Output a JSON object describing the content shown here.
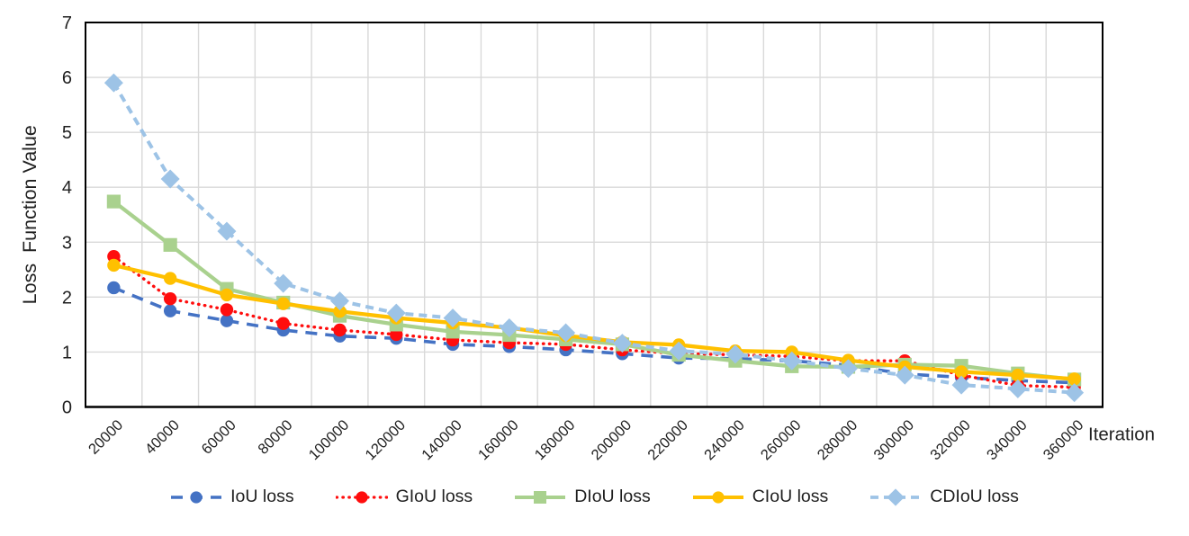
{
  "chart_data": {
    "type": "line",
    "title": "",
    "xlabel": "Iteration",
    "ylabel": "Loss  Function Value",
    "ylim": [
      0,
      7
    ],
    "yticks": [
      0,
      1,
      2,
      3,
      4,
      5,
      6,
      7
    ],
    "grid": true,
    "legend_position": "bottom",
    "categories": [
      20000,
      40000,
      60000,
      80000,
      100000,
      120000,
      140000,
      160000,
      180000,
      200000,
      220000,
      240000,
      260000,
      280000,
      300000,
      320000,
      340000,
      360000
    ],
    "series": [
      {
        "name": "IoU loss",
        "color": "#4472C4",
        "line_style": "long-dash",
        "marker": "circle",
        "values": [
          2.17,
          1.75,
          1.57,
          1.4,
          1.29,
          1.25,
          1.14,
          1.1,
          1.04,
          0.97,
          0.89,
          0.88,
          0.84,
          0.76,
          0.6,
          0.54,
          0.48,
          0.44
        ]
      },
      {
        "name": "GIoU loss",
        "color": "#FF0D0D",
        "line_style": "dotted",
        "marker": "circle",
        "values": [
          2.74,
          1.97,
          1.77,
          1.52,
          1.4,
          1.32,
          1.22,
          1.17,
          1.14,
          1.04,
          0.97,
          0.95,
          0.92,
          0.84,
          0.84,
          0.58,
          0.39,
          0.36
        ]
      },
      {
        "name": "DIoU loss",
        "color": "#A9D18E",
        "line_style": "solid",
        "marker": "square",
        "values": [
          3.74,
          2.95,
          2.15,
          1.9,
          1.66,
          1.5,
          1.37,
          1.31,
          1.23,
          1.14,
          0.95,
          0.84,
          0.74,
          0.73,
          0.77,
          0.75,
          0.61,
          0.5
        ]
      },
      {
        "name": "CIoU loss",
        "color": "#FFC000",
        "line_style": "solid",
        "marker": "circle",
        "values": [
          2.58,
          2.34,
          2.04,
          1.88,
          1.74,
          1.62,
          1.53,
          1.44,
          1.3,
          1.18,
          1.13,
          1.02,
          1.0,
          0.85,
          0.73,
          0.64,
          0.58,
          0.51
        ]
      },
      {
        "name": "CDIoU loss",
        "color": "#9DC3E6",
        "line_style": "dash",
        "marker": "diamond",
        "values": [
          5.9,
          4.15,
          3.2,
          2.25,
          1.93,
          1.71,
          1.62,
          1.44,
          1.35,
          1.16,
          1.02,
          0.96,
          0.84,
          0.7,
          0.58,
          0.4,
          0.33,
          0.26
        ]
      }
    ],
    "colors": {
      "gridline": "#D9D9D9",
      "axis_border": "#000000",
      "text": "#1F1F1F",
      "background": "#FFFFFF"
    }
  }
}
